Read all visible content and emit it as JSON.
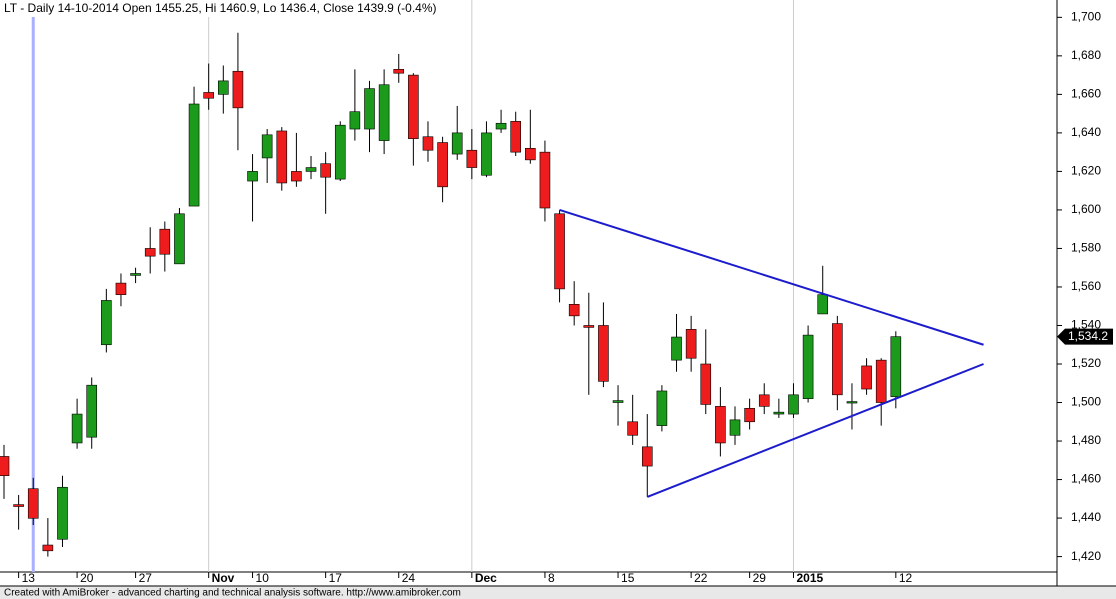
{
  "chart_data": {
    "type": "candlestick",
    "title": "LT - Daily 14-10-2014 Open 1455.25, Hi 1460.9, Lo 1436.4, Close 1439.9 (-0.4%)",
    "footer": "Created with AmiBroker - advanced charting and technical analysis software. http://www.amibroker.com",
    "categories": [
      null,
      "13",
      null,
      null,
      null,
      "20",
      null,
      null,
      null,
      "27",
      null,
      null,
      null,
      null,
      "Nov",
      null,
      null,
      "10",
      null,
      null,
      null,
      null,
      "17",
      null,
      null,
      null,
      null,
      "24",
      null,
      null,
      null,
      null,
      "Dec",
      null,
      null,
      null,
      null,
      "8",
      null,
      null,
      null,
      null,
      "15",
      null,
      null,
      null,
      null,
      "22",
      null,
      null,
      null,
      "29",
      null,
      null,
      "2015",
      null,
      null,
      null,
      null,
      null,
      null,
      "12"
    ],
    "open": [
      1472,
      1447,
      1455.25,
      1426,
      1429,
      1479,
      1482,
      1530,
      1562,
      1566,
      1580,
      1590,
      1572,
      1602,
      1661,
      1660,
      1672,
      1615,
      1627,
      1641,
      1620,
      1620,
      1624,
      1616,
      1642,
      1642,
      1636,
      1673,
      1670,
      1638,
      1635,
      1629,
      1631,
      1618,
      1642,
      1646,
      1632,
      1630,
      1598,
      1551,
      1540,
      1540,
      1500,
      1490,
      1477,
      1488,
      1522,
      1538,
      1520,
      1498,
      1483,
      1497,
      1504,
      1494,
      1494,
      1502,
      1546,
      1541,
      1500,
      1519,
      1522,
      1503
    ],
    "high": [
      1478,
      1452,
      1460.9,
      1440,
      1462,
      1502,
      1513,
      1559,
      1567,
      1570,
      1591,
      1594,
      1601,
      1664,
      1676,
      1675,
      1692,
      1629,
      1642,
      1643,
      1640,
      1628,
      1630,
      1646,
      1673,
      1667,
      1673,
      1681,
      1671,
      1646,
      1638,
      1654,
      1642,
      1646,
      1652,
      1651,
      1652,
      1636,
      1600,
      1563,
      1557,
      1552,
      1509,
      1504,
      1494,
      1509,
      1546,
      1545,
      1538,
      1508,
      1498,
      1502,
      1510,
      1502,
      1510,
      1540,
      1571,
      1545,
      1510,
      1523,
      1523,
      1537
    ],
    "low": [
      1450,
      1434,
      1436.4,
      1420,
      1425,
      1476,
      1476,
      1526,
      1550,
      1562,
      1567,
      1568,
      1572,
      1602,
      1652,
      1650,
      1631,
      1594,
      1614,
      1610,
      1612,
      1616,
      1598,
      1615,
      1636,
      1630,
      1629,
      1666,
      1623,
      1625,
      1604,
      1626,
      1616,
      1617,
      1640,
      1628,
      1624,
      1594,
      1552,
      1540,
      1504,
      1508,
      1488,
      1478,
      1451,
      1485,
      1516,
      1516,
      1494,
      1472,
      1478,
      1486,
      1494,
      1492,
      1492,
      1500,
      1546,
      1496,
      1486,
      1504,
      1488,
      1497
    ],
    "close": [
      1462,
      1446,
      1439.9,
      1423,
      1456,
      1494,
      1509,
      1553,
      1556,
      1567,
      1576,
      1577,
      1598,
      1655,
      1658,
      1667,
      1653,
      1620,
      1639,
      1614,
      1615,
      1622,
      1617,
      1644,
      1651,
      1663,
      1665,
      1671,
      1637,
      1631,
      1612,
      1640,
      1622,
      1640,
      1645,
      1630,
      1626,
      1601,
      1559,
      1545,
      1539,
      1511,
      1501,
      1483,
      1467,
      1506,
      1534,
      1523,
      1499,
      1479,
      1491,
      1490,
      1498,
      1495,
      1504,
      1535,
      1556,
      1504,
      1500.5,
      1507,
      1500,
      1534.2
    ],
    "up_color": "#1b9a1b",
    "down_color": "#ee1c1c",
    "selected": 2,
    "selected_color": "#aab0ff",
    "last_label": {
      "value": 1534.2,
      "label": "1,534.2"
    },
    "trendlines": [
      {
        "x": [
          38,
          67
        ],
        "y": [
          1600,
          1530
        ],
        "color": "#1c1ccc"
      },
      {
        "x": [
          44,
          67
        ],
        "y": [
          1451,
          1520
        ],
        "color": "#1c1ccc"
      }
    ],
    "ylim": [
      1412,
      1709
    ],
    "yticks": [
      {
        "value": 1420,
        "label": "1,420"
      },
      {
        "value": 1440,
        "label": "1,440"
      },
      {
        "value": 1460,
        "label": "1,460"
      },
      {
        "value": 1480,
        "label": "1,480"
      },
      {
        "value": 1500,
        "label": "1,500"
      },
      {
        "value": 1520,
        "label": "1,520"
      },
      {
        "value": 1540,
        "label": "1,540"
      },
      {
        "value": 1560,
        "label": "1,560"
      },
      {
        "value": 1580,
        "label": "1,580"
      },
      {
        "value": 1600,
        "label": "1,600"
      },
      {
        "value": 1620,
        "label": "1,620"
      },
      {
        "value": 1640,
        "label": "1,640"
      },
      {
        "value": 1660,
        "label": "1,660"
      },
      {
        "value": 1680,
        "label": "1,680"
      },
      {
        "value": 1700,
        "label": "1,700"
      }
    ],
    "bold_categories": [
      "Nov",
      "Dec",
      "2015"
    ]
  }
}
